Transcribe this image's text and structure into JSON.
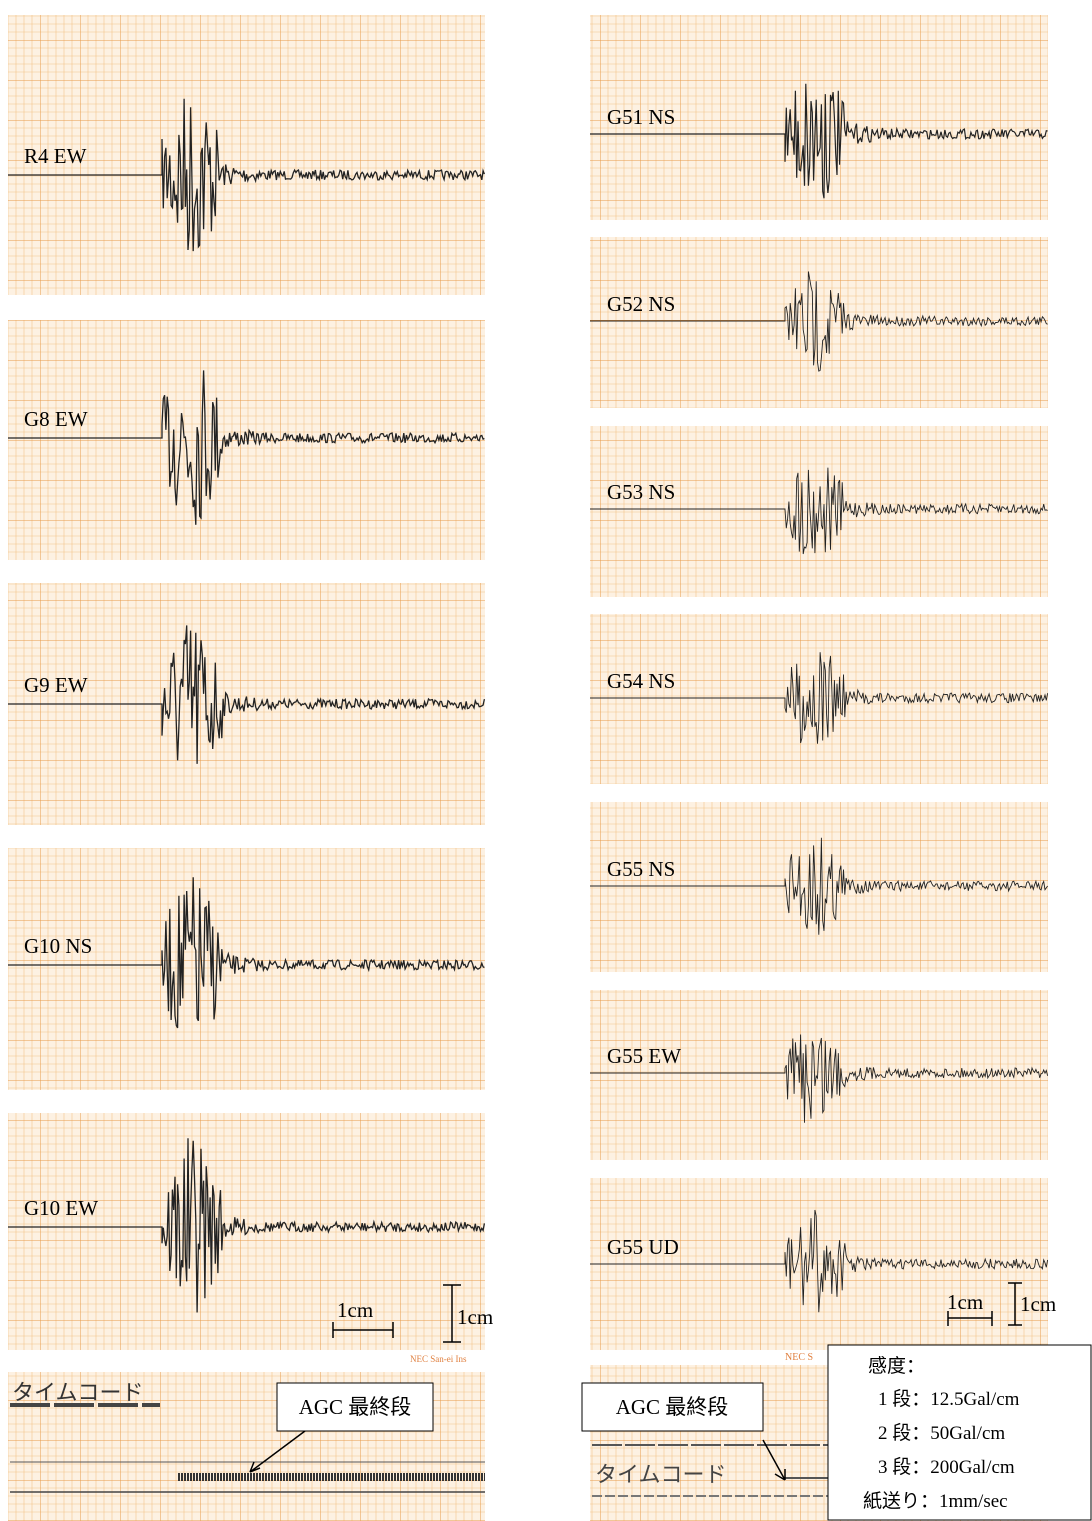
{
  "left_panel": {
    "traces": [
      "R4 EW",
      "G8 EW",
      "G9 EW",
      "G10 NS",
      "G10 EW"
    ],
    "scale_x": "1cm",
    "scale_y": "1cm",
    "maker": "NEC San-ei Ins",
    "timecode_label": "タイムコード",
    "callout": "AGC 最終段"
  },
  "right_panel": {
    "traces": [
      "G51 NS",
      "G52 NS",
      "G53 NS",
      "G54 NS",
      "G55 NS",
      "G55 EW",
      "G55 UD"
    ],
    "scale_x": "1cm",
    "scale_y": "1cm",
    "maker": "NEC S",
    "timecode_label": "タイムコード",
    "callout": "AGC 最終段"
  },
  "sensitivity_box": {
    "title": "感度：",
    "lines": [
      "1 段：12.5Gal/cm",
      "2 段：50Gal/cm",
      "3 段：200Gal/cm",
      "紙送り：1mm/sec"
    ]
  }
}
